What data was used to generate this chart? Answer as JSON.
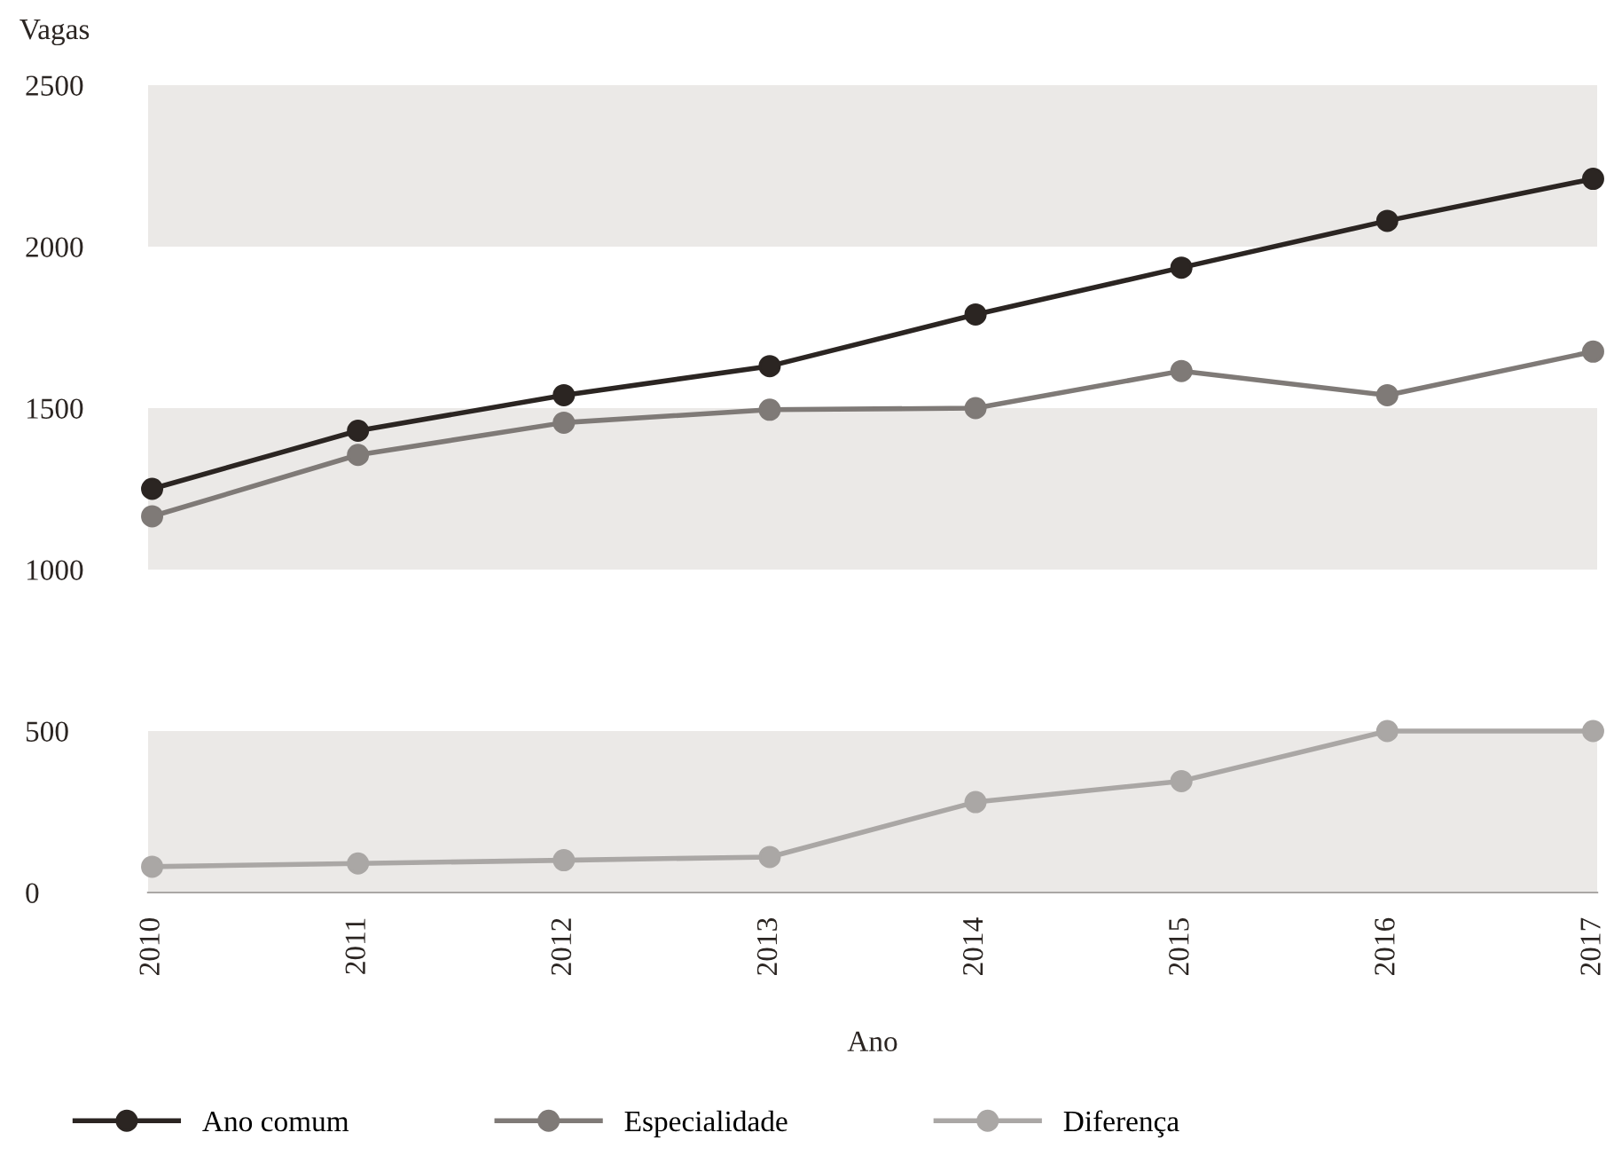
{
  "chart_data": {
    "type": "line",
    "ylabel": "Vagas",
    "xlabel": "Ano",
    "categories": [
      "2010",
      "2011",
      "2012",
      "2013",
      "2014",
      "2015",
      "2016",
      "2017"
    ],
    "series": [
      {
        "name": "Ano comum",
        "color": "#2b2522",
        "values": [
          1250,
          1430,
          1540,
          1630,
          1790,
          1935,
          2080,
          2210
        ]
      },
      {
        "name": "Especialidade",
        "color": "#7f7a77",
        "values": [
          1165,
          1355,
          1455,
          1495,
          1500,
          1615,
          1540,
          1675
        ]
      },
      {
        "name": "Diferença",
        "color": "#aaa7a5",
        "values": [
          80,
          90,
          100,
          110,
          280,
          345,
          500,
          500
        ]
      }
    ],
    "ylim": [
      0,
      2500
    ],
    "yticks": [
      0,
      500,
      1000,
      1500,
      2000,
      2500
    ],
    "bands": [
      {
        "axis": "y",
        "from": 0,
        "to": 500,
        "color": "#ebe9e7"
      },
      {
        "axis": "y",
        "from": 1000,
        "to": 1500,
        "color": "#ebe9e7"
      },
      {
        "axis": "y",
        "from": 2000,
        "to": 2500,
        "color": "#ebe9e7"
      }
    ],
    "marker": "circle",
    "line_style": "solid",
    "legend": "bottom",
    "grid": false
  }
}
